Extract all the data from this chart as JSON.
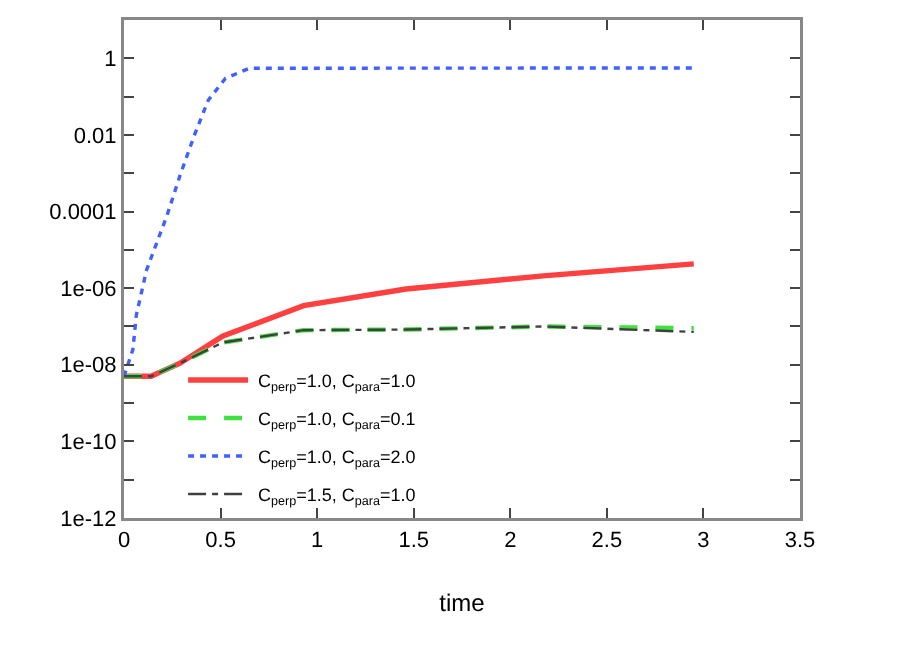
{
  "chart_data": {
    "type": "line",
    "xlabel": "time",
    "log": "y",
    "grid": false,
    "legend": "bottom left",
    "marker": "none",
    "xlim": [
      0,
      3.5
    ],
    "xticks": [
      0,
      0.5,
      1,
      1.5,
      2,
      2.5,
      3,
      3.5
    ],
    "ylim": [
      1e-12,
      10
    ],
    "yticks": [
      1,
      {
        "value": 0.1,
        "label": null
      },
      0.01,
      {
        "value": 0.001,
        "label": null
      },
      0.0001,
      {
        "value": 1e-05,
        "label": null
      },
      {
        "value": 1e-06,
        "label": "1e-06"
      },
      {
        "value": 1e-07,
        "label": null
      },
      {
        "value": 1e-08,
        "label": "1e-08"
      },
      {
        "value": 1e-09,
        "label": null
      },
      {
        "value": 1e-10,
        "label": "1e-10"
      },
      {
        "value": 1e-11,
        "label": null
      },
      {
        "value": 1e-12,
        "label": "1e-12"
      }
    ],
    "series": [
      {
        "name": "C$_{perp}$=1.0, C$_{para}$=1.0",
        "color": "#ff4040",
        "line_style": "solid",
        "x": [
          0,
          0.14,
          0.29,
          0.51,
          0.93,
          1.46,
          2.17,
          2.95
        ],
        "values": [
          5e-09,
          5e-09,
          1.1e-08,
          5.6e-08,
          3.5e-07,
          9.5e-07,
          2.1e-06,
          4.3e-06
        ]
      },
      {
        "name": "C$_{perp}$=1.0, C$_{para}$=0.1",
        "color": "#40e040",
        "line_style": "dashed",
        "x": [
          0,
          0.14,
          0.29,
          0.51,
          0.93,
          1.46,
          2.17,
          2.95
        ],
        "values": [
          5e-09,
          5e-09,
          1.1e-08,
          3.8e-08,
          8e-08,
          8.3e-08,
          1e-07,
          9e-08
        ]
      },
      {
        "name": "C$_{perp}$=1.0, C$_{para}$=2.0",
        "color": "#4060ff",
        "line_style": "dotted",
        "x": [
          0,
          0.046,
          0.064,
          0.117,
          0.223,
          0.294,
          0.365,
          0.436,
          0.525,
          0.649,
          2.95
        ],
        "values": [
          5e-09,
          2.5e-08,
          2e-07,
          3e-06,
          8e-05,
          0.001,
          0.01,
          0.08,
          0.3,
          0.55,
          0.56
        ]
      },
      {
        "name": "C$_{perp}$=1.5, C$_{para}$=1.0",
        "color": "#404040",
        "line_style": "dashdot",
        "x": [
          0,
          0.14,
          0.29,
          0.51,
          0.93,
          1.46,
          2.17,
          2.95
        ],
        "values": [
          5e-09,
          5e-09,
          1.1e-08,
          3.8e-08,
          8e-08,
          8.3e-08,
          1e-07,
          7.2e-08
        ]
      }
    ]
  }
}
